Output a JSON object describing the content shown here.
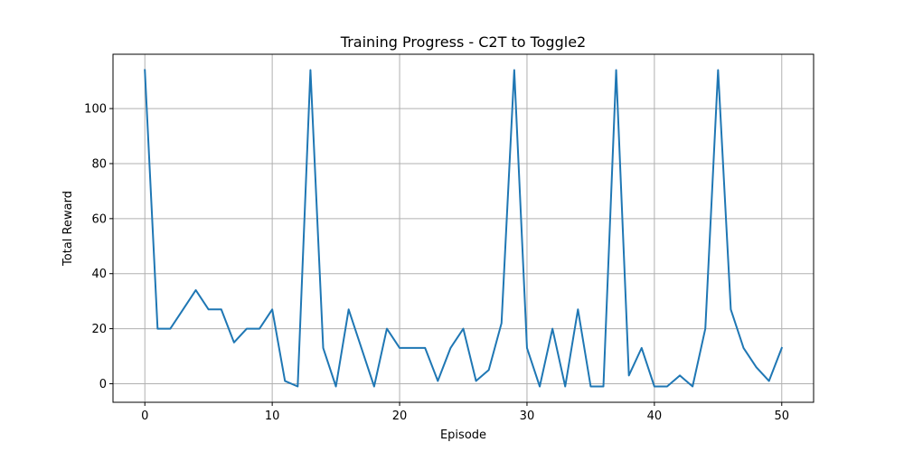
{
  "chart_data": {
    "type": "line",
    "title": "Training Progress - C2T to Toggle2",
    "xlabel": "Episode",
    "ylabel": "Total Reward",
    "xlim": [
      -2.5,
      52.5
    ],
    "ylim": [
      -6.75,
      119.75
    ],
    "xticks": [
      0,
      10,
      20,
      30,
      40,
      50
    ],
    "yticks": [
      0,
      20,
      40,
      60,
      80,
      100
    ],
    "grid": true,
    "series": [
      {
        "color": "#1f77b4",
        "x": [
          0,
          1,
          2,
          3,
          4,
          5,
          6,
          7,
          8,
          9,
          10,
          11,
          12,
          13,
          14,
          15,
          16,
          17,
          18,
          19,
          20,
          21,
          22,
          23,
          24,
          25,
          26,
          27,
          28,
          29,
          30,
          31,
          32,
          33,
          34,
          35,
          36,
          37,
          38,
          39,
          40,
          41,
          42,
          43,
          44,
          45,
          46,
          47,
          48,
          49,
          50
        ],
        "y": [
          114,
          20,
          20,
          27,
          34,
          27,
          27,
          15,
          20,
          20,
          27,
          1,
          -1,
          114,
          13,
          -1,
          27,
          13,
          -1,
          20,
          13,
          13,
          13,
          1,
          13,
          20,
          1,
          5,
          22,
          114,
          13,
          -1,
          20,
          -1,
          27,
          -1,
          -1,
          114,
          3,
          13,
          -1,
          -1,
          3,
          -1,
          20,
          114,
          27,
          13,
          6,
          1,
          13
        ]
      }
    ]
  }
}
